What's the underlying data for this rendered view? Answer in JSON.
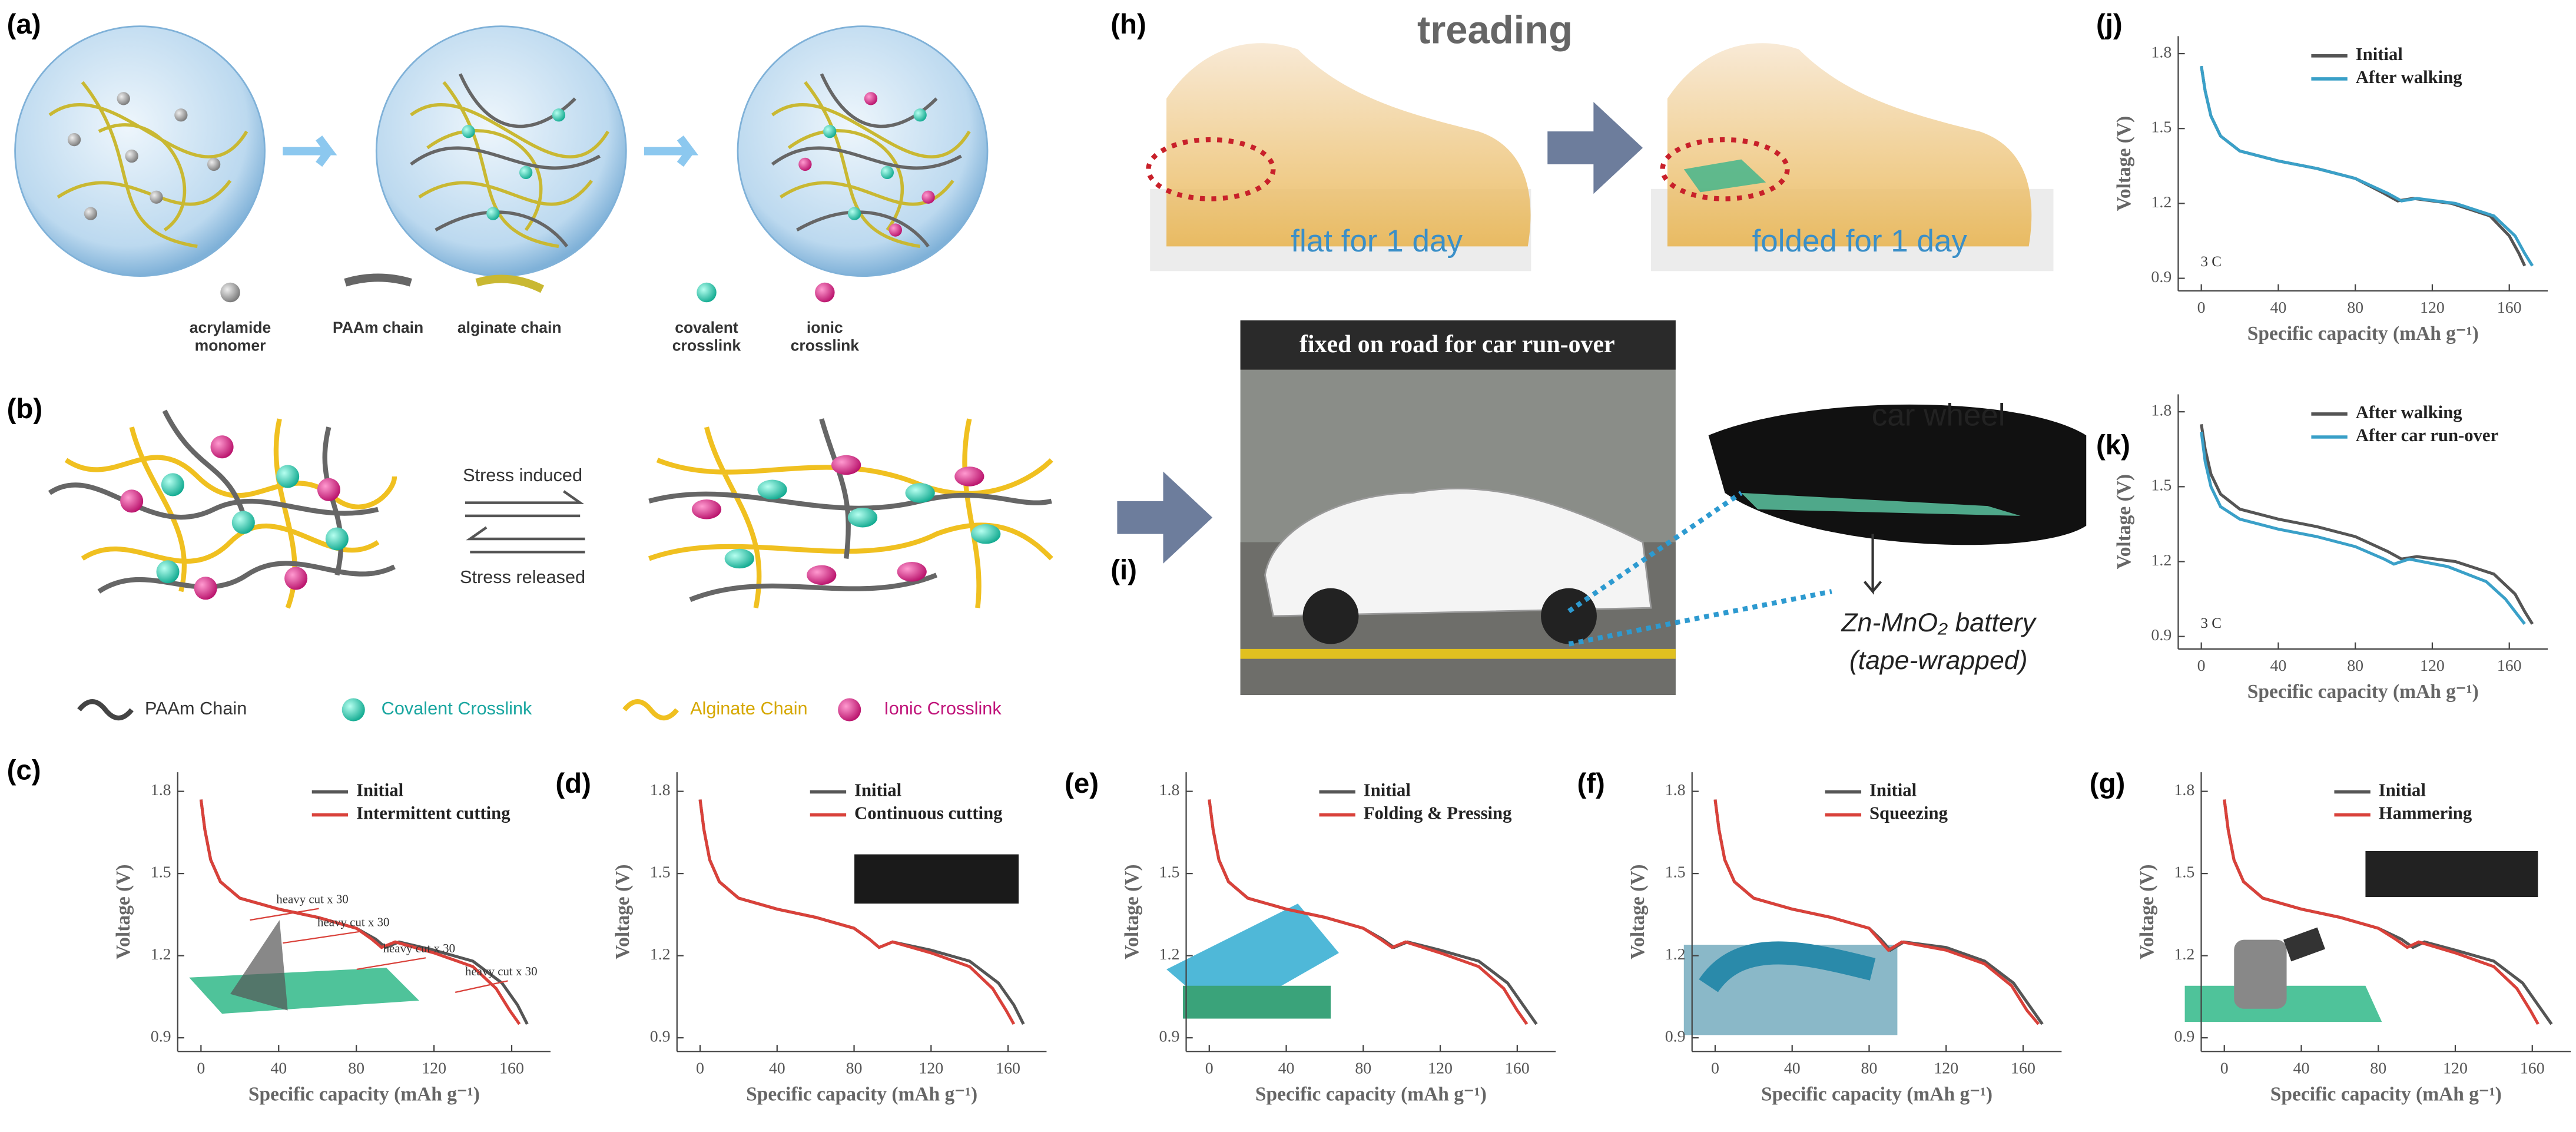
{
  "panel_labels": [
    "(a)",
    "(b)",
    "(c)",
    "(d)",
    "(e)",
    "(f)",
    "(g)",
    "(h)",
    "(i)",
    "(j)",
    "(k)"
  ],
  "a": {
    "legend": [
      [
        "acrylamide",
        "monomer"
      ],
      [
        "PAAm chain"
      ],
      [
        "alginate chain"
      ],
      [
        "covalent",
        "crosslink"
      ],
      [
        "ionic",
        "crosslink"
      ]
    ]
  },
  "b": {
    "stress_induced": "Stress induced",
    "stress_released": "Stress released",
    "legend": [
      "PAAm Chain",
      "Covalent Crosslink",
      "Alginate Chain",
      "Ionic Crosslink"
    ]
  },
  "h": {
    "title": "treading",
    "left": "flat for 1 day",
    "right": "folded for 1 day"
  },
  "i": {
    "banner": "fixed on road for car run-over",
    "wheel": "car wheel",
    "battery": "Zn-MnO₂ battery",
    "wrap": "(tape-wrapped)"
  },
  "chart_data": [
    {
      "type": "line",
      "xlabel": "Specific capacity (mAh g⁻¹)",
      "ylabel": "Voltage (V)",
      "xlim": [
        -12,
        180
      ],
      "ylim": [
        0.85,
        1.87
      ],
      "xticks": [
        0,
        40,
        80,
        120,
        160
      ],
      "yticks": [
        0.9,
        1.2,
        1.5,
        1.8
      ],
      "legend": "upper right",
      "annotations": [
        "heavy cut x 30",
        "heavy cut x 30",
        "heavy cut x 30",
        "heavy cut x 30"
      ],
      "series": [
        {
          "name": "Initial",
          "color": "#555555",
          "x": [
            0,
            2,
            5,
            10,
            20,
            40,
            60,
            80,
            90,
            95,
            102,
            120,
            140,
            155,
            163,
            168
          ],
          "values": [
            1.77,
            1.66,
            1.55,
            1.47,
            1.41,
            1.37,
            1.34,
            1.3,
            1.26,
            1.23,
            1.25,
            1.22,
            1.18,
            1.1,
            1.02,
            0.95
          ]
        },
        {
          "name": "Intermittent cutting",
          "color": "#d9413a",
          "x": [
            0,
            2,
            5,
            10,
            20,
            40,
            60,
            80,
            88,
            93,
            100,
            120,
            140,
            152,
            159,
            164
          ],
          "values": [
            1.77,
            1.66,
            1.55,
            1.47,
            1.41,
            1.37,
            1.34,
            1.3,
            1.26,
            1.23,
            1.25,
            1.21,
            1.16,
            1.08,
            1.0,
            0.95
          ]
        }
      ]
    },
    {
      "type": "line",
      "xlabel": "Specific capacity (mAh g⁻¹)",
      "ylabel": "Voltage (V)",
      "xlim": [
        -12,
        180
      ],
      "ylim": [
        0.85,
        1.87
      ],
      "xticks": [
        0,
        40,
        80,
        120,
        160
      ],
      "yticks": [
        0.9,
        1.2,
        1.5,
        1.8
      ],
      "legend": "upper right",
      "series": [
        {
          "name": "Initial",
          "color": "#555555",
          "x": [
            0,
            2,
            5,
            10,
            20,
            40,
            60,
            80,
            88,
            93,
            100,
            120,
            140,
            155,
            163,
            168
          ],
          "values": [
            1.77,
            1.66,
            1.55,
            1.47,
            1.41,
            1.37,
            1.34,
            1.3,
            1.26,
            1.23,
            1.25,
            1.22,
            1.18,
            1.1,
            1.02,
            0.95
          ]
        },
        {
          "name": "Continuous cutting",
          "color": "#d9413a",
          "x": [
            0,
            2,
            5,
            10,
            20,
            40,
            60,
            80,
            88,
            93,
            100,
            120,
            140,
            152,
            159,
            163
          ],
          "values": [
            1.77,
            1.66,
            1.55,
            1.47,
            1.41,
            1.37,
            1.34,
            1.3,
            1.26,
            1.23,
            1.25,
            1.21,
            1.16,
            1.08,
            1.0,
            0.95
          ]
        }
      ]
    },
    {
      "type": "line",
      "xlabel": "Specific capacity (mAh g⁻¹)",
      "ylabel": "Voltage (V)",
      "xlim": [
        -12,
        180
      ],
      "ylim": [
        0.85,
        1.87
      ],
      "xticks": [
        0,
        40,
        80,
        120,
        160
      ],
      "yticks": [
        0.9,
        1.2,
        1.5,
        1.8
      ],
      "legend": "upper right",
      "series": [
        {
          "name": "Initial",
          "color": "#555555",
          "x": [
            0,
            2,
            5,
            10,
            20,
            40,
            60,
            80,
            90,
            96,
            103,
            120,
            140,
            155,
            163,
            170
          ],
          "values": [
            1.77,
            1.66,
            1.55,
            1.47,
            1.41,
            1.37,
            1.34,
            1.3,
            1.26,
            1.23,
            1.25,
            1.22,
            1.18,
            1.1,
            1.02,
            0.95
          ]
        },
        {
          "name": "Folding & Pressing",
          "color": "#d9413a",
          "x": [
            0,
            2,
            5,
            10,
            20,
            40,
            60,
            80,
            89,
            95,
            102,
            120,
            140,
            153,
            160,
            165
          ],
          "values": [
            1.77,
            1.66,
            1.55,
            1.47,
            1.41,
            1.37,
            1.34,
            1.3,
            1.26,
            1.23,
            1.25,
            1.21,
            1.16,
            1.08,
            1.0,
            0.95
          ]
        }
      ]
    },
    {
      "type": "line",
      "xlabel": "Specific capacity (mAh g⁻¹)",
      "ylabel": "Voltage (V)",
      "xlim": [
        -12,
        180
      ],
      "ylim": [
        0.85,
        1.87
      ],
      "xticks": [
        0,
        40,
        80,
        120,
        160
      ],
      "yticks": [
        0.9,
        1.2,
        1.5,
        1.8
      ],
      "legend": "upper right",
      "series": [
        {
          "name": "Initial",
          "color": "#555555",
          "x": [
            0,
            2,
            5,
            10,
            20,
            40,
            60,
            80,
            86,
            91,
            98,
            120,
            140,
            155,
            163,
            170
          ],
          "values": [
            1.77,
            1.66,
            1.55,
            1.47,
            1.41,
            1.37,
            1.34,
            1.3,
            1.26,
            1.22,
            1.25,
            1.23,
            1.18,
            1.1,
            1.02,
            0.95
          ]
        },
        {
          "name": "Squeezing",
          "color": "#d9413a",
          "x": [
            0,
            2,
            5,
            10,
            20,
            40,
            60,
            80,
            85,
            90,
            97,
            120,
            140,
            154,
            162,
            168
          ],
          "values": [
            1.77,
            1.66,
            1.55,
            1.47,
            1.41,
            1.37,
            1.34,
            1.3,
            1.26,
            1.22,
            1.25,
            1.22,
            1.17,
            1.09,
            1.0,
            0.95
          ]
        }
      ]
    },
    {
      "type": "line",
      "xlabel": "Specific capacity (mAh g⁻¹)",
      "ylabel": "Voltage (V)",
      "xlim": [
        -12,
        180
      ],
      "ylim": [
        0.85,
        1.87
      ],
      "xticks": [
        0,
        40,
        80,
        120,
        160
      ],
      "yticks": [
        0.9,
        1.2,
        1.5,
        1.8
      ],
      "legend": "upper right",
      "series": [
        {
          "name": "Initial",
          "color": "#555555",
          "x": [
            0,
            2,
            5,
            10,
            20,
            40,
            60,
            80,
            92,
            98,
            104,
            120,
            140,
            155,
            163,
            170
          ],
          "values": [
            1.77,
            1.66,
            1.55,
            1.47,
            1.41,
            1.37,
            1.34,
            1.3,
            1.26,
            1.23,
            1.25,
            1.22,
            1.18,
            1.1,
            1.02,
            0.95
          ]
        },
        {
          "name": "Hammering",
          "color": "#d9413a",
          "x": [
            0,
            2,
            5,
            10,
            20,
            40,
            60,
            80,
            89,
            95,
            101,
            120,
            140,
            152,
            159,
            163
          ],
          "values": [
            1.77,
            1.66,
            1.55,
            1.47,
            1.41,
            1.37,
            1.34,
            1.3,
            1.26,
            1.23,
            1.25,
            1.21,
            1.16,
            1.08,
            1.0,
            0.95
          ]
        }
      ]
    },
    {
      "type": "line",
      "xlabel": "Specific capacity (mAh g⁻¹)",
      "ylabel": "Voltage (V)",
      "xlim": [
        -12,
        180
      ],
      "ylim": [
        0.85,
        1.87
      ],
      "xticks": [
        0,
        40,
        80,
        120,
        160
      ],
      "yticks": [
        0.9,
        1.2,
        1.5,
        1.8
      ],
      "legend": "upper right",
      "annotations": [
        "3 C"
      ],
      "series": [
        {
          "name": "Initial",
          "color": "#555555",
          "x": [
            0,
            2,
            5,
            10,
            20,
            40,
            60,
            80,
            95,
            102,
            110,
            130,
            150,
            160,
            165,
            168
          ],
          "values": [
            1.75,
            1.65,
            1.55,
            1.47,
            1.41,
            1.37,
            1.34,
            1.3,
            1.24,
            1.21,
            1.22,
            1.2,
            1.15,
            1.07,
            1.0,
            0.95
          ]
        },
        {
          "name": "After walking",
          "color": "#3aa0c8",
          "x": [
            0,
            2,
            5,
            10,
            20,
            40,
            60,
            80,
            97,
            104,
            112,
            132,
            152,
            163,
            168,
            172
          ],
          "values": [
            1.75,
            1.65,
            1.55,
            1.47,
            1.41,
            1.37,
            1.34,
            1.3,
            1.24,
            1.21,
            1.22,
            1.2,
            1.15,
            1.07,
            1.0,
            0.95
          ]
        }
      ]
    },
    {
      "type": "line",
      "xlabel": "Specific capacity (mAh g⁻¹)",
      "ylabel": "Voltage (V)",
      "xlim": [
        -12,
        180
      ],
      "ylim": [
        0.85,
        1.87
      ],
      "xticks": [
        0,
        40,
        80,
        120,
        160
      ],
      "yticks": [
        0.9,
        1.2,
        1.5,
        1.8
      ],
      "legend": "upper right",
      "annotations": [
        "3 C"
      ],
      "series": [
        {
          "name": "After walking",
          "color": "#555555",
          "x": [
            0,
            2,
            5,
            10,
            20,
            40,
            60,
            80,
            97,
            104,
            112,
            132,
            152,
            163,
            168,
            172
          ],
          "values": [
            1.75,
            1.65,
            1.55,
            1.47,
            1.41,
            1.37,
            1.34,
            1.3,
            1.24,
            1.21,
            1.22,
            1.2,
            1.15,
            1.07,
            1.0,
            0.95
          ]
        },
        {
          "name": "After car run-over",
          "color": "#3aa0c8",
          "x": [
            0,
            2,
            5,
            10,
            20,
            40,
            60,
            80,
            95,
            100,
            108,
            128,
            148,
            158,
            164,
            168
          ],
          "values": [
            1.72,
            1.6,
            1.5,
            1.42,
            1.37,
            1.33,
            1.3,
            1.26,
            1.21,
            1.19,
            1.21,
            1.18,
            1.12,
            1.05,
            0.99,
            0.95
          ]
        }
      ]
    }
  ]
}
